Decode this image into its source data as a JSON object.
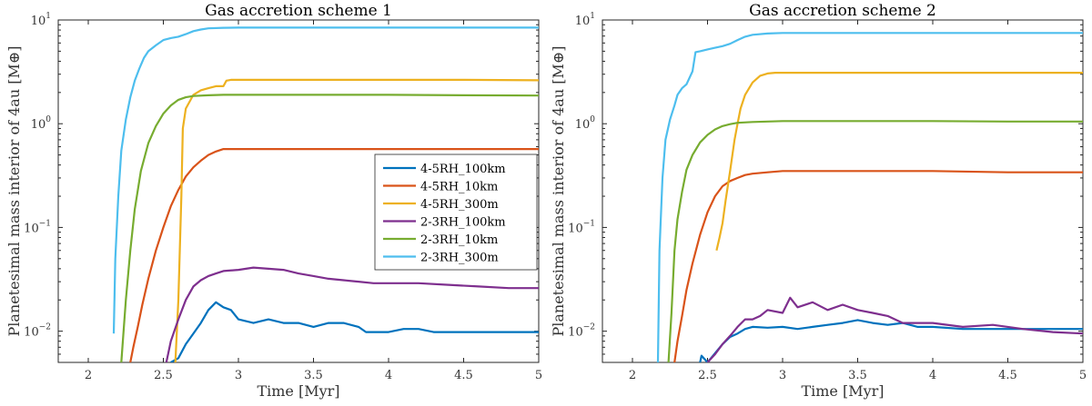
{
  "units": {
    "ylabel_prefix": "Planetesimal mass interior of 4au [M",
    "ylabel_symbol": "⊕",
    "ylabel_suffix": "]"
  },
  "chart_data": [
    {
      "type": "line",
      "title": "Gas accretion scheme 1",
      "xlabel": "Time [Myr]",
      "ylabel": "Planetesimal mass interior of 4au [M⊕]",
      "xlim": [
        1.8,
        5.0
      ],
      "ylim": [
        0.005,
        10
      ],
      "yscale": "log",
      "xticks": [
        2,
        2.5,
        3,
        3.5,
        4,
        4.5,
        5
      ],
      "xtick_labels": [
        "2",
        "2.5",
        "3",
        "3.5",
        "4",
        "4.5",
        "5"
      ],
      "yticks": [
        0.01,
        0.1,
        1,
        10
      ],
      "ytick_labels": [
        {
          "base": "10",
          "exp": "−2"
        },
        {
          "base": "10",
          "exp": "−1"
        },
        {
          "base": "10",
          "exp": "0"
        },
        {
          "base": "10",
          "exp": "1"
        }
      ],
      "legend_position": "center-right",
      "series": [
        {
          "name": "4-5RH_100km",
          "color": "#0072BD",
          "x": [
            2.55,
            2.6,
            2.65,
            2.7,
            2.75,
            2.8,
            2.85,
            2.9,
            2.95,
            3.0,
            3.1,
            3.2,
            3.3,
            3.4,
            3.5,
            3.6,
            3.7,
            3.8,
            3.85,
            3.9,
            4.0,
            4.1,
            4.2,
            4.3,
            4.4,
            4.5,
            4.6,
            4.7,
            4.8,
            4.9,
            5.0
          ],
          "y": [
            0.005,
            0.0055,
            0.0075,
            0.0095,
            0.012,
            0.016,
            0.019,
            0.017,
            0.016,
            0.013,
            0.012,
            0.013,
            0.012,
            0.012,
            0.011,
            0.012,
            0.012,
            0.011,
            0.0098,
            0.0098,
            0.0098,
            0.0105,
            0.0105,
            0.0098,
            0.0098,
            0.0098,
            0.0098,
            0.0098,
            0.0098,
            0.0098,
            0.0098
          ]
        },
        {
          "name": "4-5RH_10km",
          "color": "#D95319",
          "x": [
            2.28,
            2.3,
            2.33,
            2.36,
            2.4,
            2.45,
            2.5,
            2.55,
            2.6,
            2.65,
            2.7,
            2.75,
            2.8,
            2.85,
            2.9,
            3.0,
            3.5,
            4.0,
            4.5,
            5.0
          ],
          "y": [
            0.005,
            0.007,
            0.011,
            0.018,
            0.032,
            0.06,
            0.1,
            0.16,
            0.23,
            0.31,
            0.38,
            0.44,
            0.5,
            0.54,
            0.57,
            0.57,
            0.57,
            0.57,
            0.57,
            0.57
          ]
        },
        {
          "name": "4-5RH_300m",
          "color": "#EDB120",
          "x": [
            2.58,
            2.6,
            2.62,
            2.63,
            2.65,
            2.7,
            2.75,
            2.8,
            2.85,
            2.9,
            2.92,
            2.95,
            3.0,
            3.5,
            4.0,
            4.5,
            5.0
          ],
          "y": [
            0.005,
            0.02,
            0.2,
            0.9,
            1.4,
            1.9,
            2.1,
            2.2,
            2.3,
            2.3,
            2.6,
            2.65,
            2.65,
            2.65,
            2.65,
            2.65,
            2.62
          ]
        },
        {
          "name": "2-3RH_100km",
          "color": "#7E2F8E",
          "x": [
            2.52,
            2.55,
            2.6,
            2.65,
            2.7,
            2.75,
            2.8,
            2.85,
            2.9,
            3.0,
            3.1,
            3.2,
            3.3,
            3.4,
            3.5,
            3.6,
            3.7,
            3.8,
            3.9,
            4.0,
            4.2,
            4.4,
            4.6,
            4.8,
            5.0
          ],
          "y": [
            0.005,
            0.008,
            0.013,
            0.02,
            0.027,
            0.031,
            0.034,
            0.036,
            0.038,
            0.039,
            0.041,
            0.04,
            0.039,
            0.036,
            0.034,
            0.032,
            0.031,
            0.03,
            0.029,
            0.029,
            0.029,
            0.028,
            0.027,
            0.026,
            0.026
          ]
        },
        {
          "name": "2-3RH_10km",
          "color": "#77AC30",
          "x": [
            2.22,
            2.25,
            2.28,
            2.31,
            2.35,
            2.4,
            2.45,
            2.5,
            2.55,
            2.6,
            2.65,
            2.7,
            2.8,
            2.9,
            3.0,
            3.5,
            4.0,
            4.5,
            5.0
          ],
          "y": [
            0.005,
            0.02,
            0.06,
            0.15,
            0.35,
            0.65,
            0.95,
            1.25,
            1.5,
            1.7,
            1.8,
            1.85,
            1.88,
            1.9,
            1.9,
            1.9,
            1.9,
            1.88,
            1.87
          ]
        },
        {
          "name": "2-3RH_300m",
          "color": "#4DBEEE",
          "x": [
            2.17,
            2.18,
            2.2,
            2.22,
            2.25,
            2.28,
            2.31,
            2.34,
            2.37,
            2.4,
            2.45,
            2.5,
            2.55,
            2.6,
            2.65,
            2.7,
            2.75,
            2.8,
            2.9,
            3.0,
            3.5,
            4.0,
            4.5,
            5.0
          ],
          "y": [
            0.0095,
            0.05,
            0.2,
            0.55,
            1.1,
            1.8,
            2.6,
            3.4,
            4.3,
            5.0,
            5.7,
            6.4,
            6.7,
            6.9,
            7.3,
            7.8,
            8.1,
            8.3,
            8.4,
            8.45,
            8.45,
            8.45,
            8.45,
            8.45
          ]
        }
      ]
    },
    {
      "type": "line",
      "title": "Gas accretion scheme 2",
      "xlabel": "Time [Myr]",
      "ylabel": "Planetesimal mass interior of 4au [M⊕]",
      "xlim": [
        1.8,
        5.0
      ],
      "ylim": [
        0.005,
        10
      ],
      "yscale": "log",
      "xticks": [
        2,
        2.5,
        3,
        3.5,
        4,
        4.5,
        5
      ],
      "xtick_labels": [
        "2",
        "2.5",
        "3",
        "3.5",
        "4",
        "4.5",
        "5"
      ],
      "yticks": [
        0.01,
        0.1,
        1,
        10
      ],
      "ytick_labels": [
        {
          "base": "10",
          "exp": "−2"
        },
        {
          "base": "10",
          "exp": "−1"
        },
        {
          "base": "10",
          "exp": "0"
        },
        {
          "base": "10",
          "exp": "1"
        }
      ],
      "legend_position": "none",
      "series": [
        {
          "name": "4-5RH_100km",
          "color": "#0072BD",
          "x": [
            2.45,
            2.46,
            2.5,
            2.6,
            2.65,
            2.7,
            2.75,
            2.8,
            2.9,
            3.0,
            3.1,
            3.2,
            3.3,
            3.4,
            3.5,
            3.6,
            3.7,
            3.8,
            3.9,
            4.0,
            4.2,
            4.4,
            4.6,
            4.8,
            5.0
          ],
          "y": [
            0.005,
            0.0058,
            0.005,
            0.0075,
            0.0088,
            0.0095,
            0.0105,
            0.011,
            0.0108,
            0.011,
            0.0105,
            0.011,
            0.0115,
            0.012,
            0.0128,
            0.012,
            0.0115,
            0.012,
            0.011,
            0.011,
            0.0105,
            0.0105,
            0.0105,
            0.0105,
            0.0105
          ]
        },
        {
          "name": "4-5RH_10km",
          "color": "#D95319",
          "x": [
            2.28,
            2.3,
            2.33,
            2.36,
            2.4,
            2.45,
            2.5,
            2.55,
            2.6,
            2.65,
            2.7,
            2.75,
            2.8,
            2.9,
            3.0,
            3.5,
            4.0,
            4.5,
            5.0
          ],
          "y": [
            0.005,
            0.008,
            0.014,
            0.025,
            0.045,
            0.085,
            0.14,
            0.2,
            0.25,
            0.28,
            0.3,
            0.32,
            0.33,
            0.34,
            0.35,
            0.35,
            0.35,
            0.34,
            0.34
          ]
        },
        {
          "name": "4-5RH_300m",
          "color": "#EDB120",
          "x": [
            2.56,
            2.58,
            2.6,
            2.62,
            2.65,
            2.68,
            2.7,
            2.72,
            2.75,
            2.8,
            2.85,
            2.9,
            2.95,
            3.0,
            3.5,
            4.0,
            4.5,
            5.0
          ],
          "y": [
            0.06,
            0.08,
            0.11,
            0.18,
            0.35,
            0.7,
            1.0,
            1.4,
            1.9,
            2.5,
            2.9,
            3.05,
            3.1,
            3.1,
            3.1,
            3.1,
            3.1,
            3.1
          ]
        },
        {
          "name": "2-3RH_100km",
          "color": "#7E2F8E",
          "x": [
            2.5,
            2.55,
            2.6,
            2.65,
            2.7,
            2.75,
            2.8,
            2.85,
            2.9,
            3.0,
            3.05,
            3.1,
            3.2,
            3.3,
            3.4,
            3.5,
            3.6,
            3.7,
            3.8,
            3.9,
            4.0,
            4.2,
            4.4,
            4.6,
            4.8,
            5.0
          ],
          "y": [
            0.005,
            0.006,
            0.0075,
            0.009,
            0.011,
            0.013,
            0.013,
            0.014,
            0.016,
            0.015,
            0.021,
            0.017,
            0.019,
            0.016,
            0.018,
            0.016,
            0.015,
            0.014,
            0.012,
            0.012,
            0.012,
            0.011,
            0.0115,
            0.0105,
            0.0098,
            0.0095
          ]
        },
        {
          "name": "2-3RH_10km",
          "color": "#77AC30",
          "x": [
            2.24,
            2.26,
            2.28,
            2.3,
            2.33,
            2.36,
            2.4,
            2.45,
            2.5,
            2.55,
            2.6,
            2.65,
            2.7,
            2.8,
            2.9,
            3.0,
            3.5,
            4.0,
            4.5,
            5.0
          ],
          "y": [
            0.005,
            0.015,
            0.06,
            0.12,
            0.22,
            0.36,
            0.5,
            0.66,
            0.78,
            0.88,
            0.95,
            0.99,
            1.02,
            1.04,
            1.05,
            1.06,
            1.06,
            1.06,
            1.05,
            1.05
          ]
        },
        {
          "name": "2-3RH_300m",
          "color": "#4DBEEE",
          "x": [
            2.17,
            2.18,
            2.2,
            2.22,
            2.25,
            2.28,
            2.3,
            2.33,
            2.36,
            2.4,
            2.42,
            2.45,
            2.5,
            2.55,
            2.6,
            2.65,
            2.7,
            2.75,
            2.8,
            2.9,
            3.0,
            3.5,
            4.0,
            4.5,
            5.0
          ],
          "y": [
            0.005,
            0.06,
            0.3,
            0.7,
            1.1,
            1.5,
            1.9,
            2.2,
            2.4,
            3.2,
            4.9,
            5.0,
            5.2,
            5.4,
            5.6,
            5.9,
            6.4,
            6.9,
            7.2,
            7.4,
            7.5,
            7.5,
            7.5,
            7.5,
            7.5
          ]
        }
      ]
    }
  ]
}
